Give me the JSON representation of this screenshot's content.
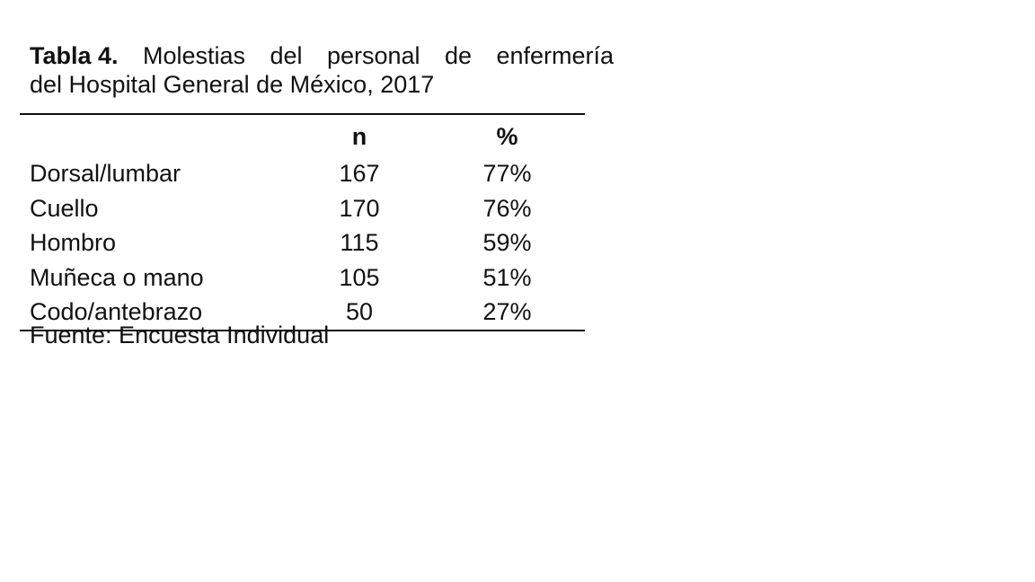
{
  "caption": {
    "label": "Tabla 4.",
    "words_line1": [
      "Molestias",
      "del",
      "personal",
      "de",
      "enfermería"
    ],
    "line2": "del Hospital General de México, 2017"
  },
  "table": {
    "headers": [
      "",
      "n",
      "%"
    ],
    "rows": [
      {
        "name": "Dorsal/lumbar",
        "n": "167",
        "pct": "77%"
      },
      {
        "name": "Cuello",
        "n": "170",
        "pct": "76%"
      },
      {
        "name": "Hombro",
        "n": "115",
        "pct": "59%"
      },
      {
        "name": "Muñeca o mano",
        "n": "105",
        "pct": "51%"
      },
      {
        "name": "Codo/antebrazo",
        "n": "50",
        "pct": "27%"
      }
    ]
  },
  "source": "Fuente: Encuesta Individual"
}
